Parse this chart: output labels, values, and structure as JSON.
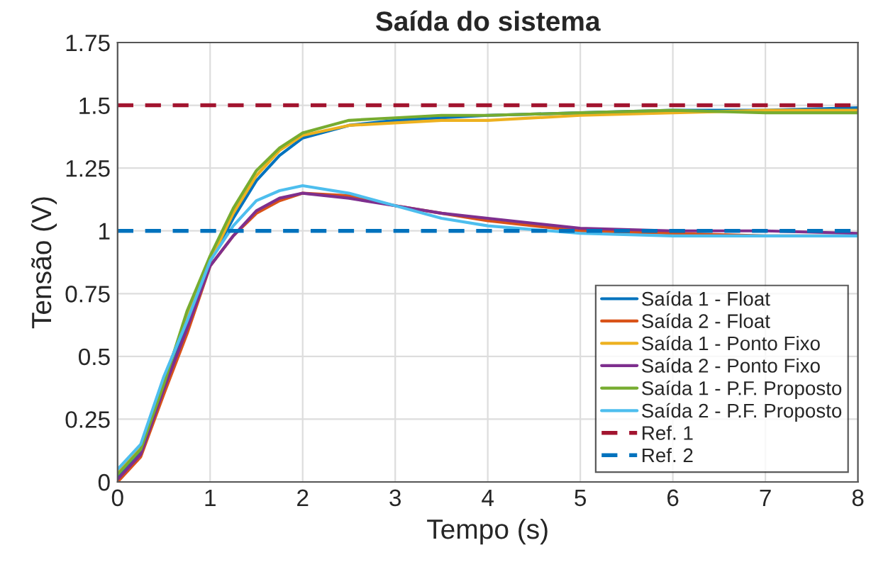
{
  "chart_data": {
    "type": "line",
    "title": "Saída do sistema",
    "xlabel": "Tempo (s)",
    "ylabel": "Tensão (V)",
    "x": [
      0,
      0.25,
      0.5,
      0.75,
      1,
      1.25,
      1.5,
      1.75,
      2,
      2.5,
      3,
      3.5,
      4,
      5,
      6,
      7,
      8
    ],
    "series": [
      {
        "name": "Saída 1 - Float",
        "color": "#0072bd",
        "values": [
          0.02,
          0.12,
          0.38,
          0.63,
          0.88,
          1.05,
          1.2,
          1.3,
          1.37,
          1.42,
          1.44,
          1.45,
          1.46,
          1.47,
          1.48,
          1.48,
          1.49
        ]
      },
      {
        "name": "Saída 2 - Float",
        "color": "#d95319",
        "values": [
          0.0,
          0.1,
          0.35,
          0.59,
          0.86,
          0.98,
          1.07,
          1.12,
          1.15,
          1.14,
          1.1,
          1.07,
          1.04,
          1.0,
          0.99,
          0.98,
          0.98
        ]
      },
      {
        "name": "Saída 1 - Ponto Fixo",
        "color": "#edb120",
        "values": [
          0.04,
          0.14,
          0.4,
          0.66,
          0.88,
          1.07,
          1.22,
          1.32,
          1.38,
          1.42,
          1.43,
          1.44,
          1.44,
          1.46,
          1.47,
          1.48,
          1.48
        ]
      },
      {
        "name": "Saída 2 - Ponto Fixo",
        "color": "#7e2f8e",
        "values": [
          0.01,
          0.11,
          0.37,
          0.61,
          0.86,
          0.98,
          1.08,
          1.13,
          1.15,
          1.13,
          1.1,
          1.07,
          1.05,
          1.01,
          1.0,
          1.0,
          0.99
        ]
      },
      {
        "name": "Saída 1 - P.F. Proposto",
        "color": "#77ac30",
        "values": [
          0.03,
          0.13,
          0.39,
          0.68,
          0.9,
          1.09,
          1.24,
          1.33,
          1.39,
          1.44,
          1.45,
          1.46,
          1.46,
          1.47,
          1.48,
          1.47,
          1.47
        ]
      },
      {
        "name": "Saída 2 - P.F. Proposto",
        "color": "#4dbeee",
        "values": [
          0.05,
          0.15,
          0.42,
          0.64,
          0.88,
          1.02,
          1.12,
          1.16,
          1.18,
          1.15,
          1.1,
          1.05,
          1.02,
          0.99,
          0.98,
          0.98,
          0.98
        ]
      }
    ],
    "ref_lines": [
      {
        "axis": "y",
        "value": 1.5,
        "label": "Ref. 1",
        "color": "#a2142f",
        "line_style": "dashed"
      },
      {
        "axis": "y",
        "value": 1,
        "label": "Ref. 2",
        "color": "#0072bd",
        "line_style": "dashed"
      }
    ],
    "xlim": [
      0,
      8
    ],
    "xticks": [
      0,
      1,
      2,
      3,
      4,
      5,
      6,
      7,
      8
    ],
    "ylim": [
      0,
      1.75
    ],
    "yticks": [
      0,
      0.25,
      0.5,
      0.75,
      1,
      1.25,
      1.5,
      1.75
    ],
    "grid": true,
    "legend": "bottom right",
    "line_style": "solid"
  }
}
